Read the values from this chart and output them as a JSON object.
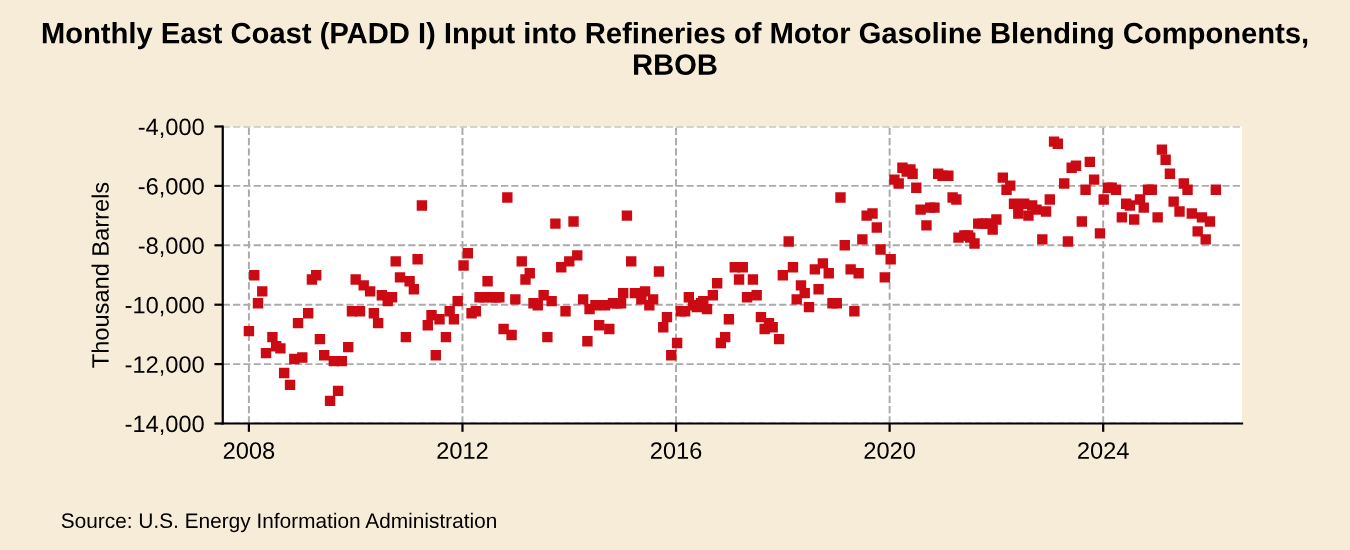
{
  "chart_data": {
    "type": "scatter",
    "title": "Monthly East Coast (PADD I) Input into Refineries of Motor Gasoline Blending Components, RBOB",
    "ylabel": "Thousand Barrels",
    "annotations": [
      "Source: U.S. Energy Information Administration"
    ],
    "x": [
      2008.0,
      2008.1,
      2008.17,
      2008.25,
      2008.32,
      2008.44,
      2008.51,
      2008.59,
      2008.66,
      2008.77,
      2008.85,
      2008.92,
      2009.0,
      2009.11,
      2009.18,
      2009.26,
      2009.33,
      2009.41,
      2009.52,
      2009.59,
      2009.67,
      2009.74,
      2009.86,
      2009.93,
      2010.0,
      2010.08,
      2010.15,
      2010.27,
      2010.34,
      2010.42,
      2010.49,
      2010.6,
      2010.68,
      2010.75,
      2010.83,
      2010.94,
      2011.01,
      2011.09,
      2011.16,
      2011.24,
      2011.35,
      2011.42,
      2011.5,
      2011.57,
      2011.69,
      2011.76,
      2011.84,
      2011.91,
      2012.02,
      2012.1,
      2012.17,
      2012.25,
      2012.32,
      2012.4,
      2012.47,
      2012.55,
      2012.62,
      2012.69,
      2012.77,
      2012.84,
      2012.92,
      2012.99,
      2013.11,
      2013.18,
      2013.26,
      2013.33,
      2013.41,
      2013.52,
      2013.59,
      2013.67,
      2013.74,
      2013.85,
      2013.93,
      2014.0,
      2014.08,
      2014.15,
      2014.26,
      2014.34,
      2014.38,
      2014.49,
      2014.56,
      2014.67,
      2014.75,
      2014.82,
      2014.9,
      2014.97,
      2015.01,
      2015.08,
      2015.16,
      2015.23,
      2015.35,
      2015.42,
      2015.5,
      2015.57,
      2015.68,
      2015.76,
      2015.83,
      2015.91,
      2016.02,
      2016.09,
      2016.17,
      2016.24,
      2016.32,
      2016.39,
      2016.47,
      2016.51,
      2016.58,
      2016.69,
      2016.77,
      2016.84,
      2016.92,
      2016.99,
      2017.1,
      2017.18,
      2017.25,
      2017.33,
      2017.44,
      2017.51,
      2017.59,
      2017.66,
      2017.74,
      2017.81,
      2017.93,
      2018.0,
      2018.11,
      2018.19,
      2018.26,
      2018.34,
      2018.41,
      2018.49,
      2018.6,
      2018.67,
      2018.75,
      2018.86,
      2018.93,
      2019.01,
      2019.08,
      2019.16,
      2019.27,
      2019.34,
      2019.42,
      2019.49,
      2019.57,
      2019.68,
      2019.76,
      2019.83,
      2019.91,
      2020.02,
      2020.09,
      2020.17,
      2020.24,
      2020.32,
      2020.39,
      2020.43,
      2020.5,
      2020.58,
      2020.69,
      2020.76,
      2020.84,
      2020.91,
      2020.99,
      2021.1,
      2021.18,
      2021.25,
      2021.29,
      2021.4,
      2021.47,
      2021.51,
      2021.59,
      2021.66,
      2021.74,
      2021.81,
      2021.89,
      2021.93,
      2022.0,
      2022.12,
      2022.19,
      2022.26,
      2022.33,
      2022.41,
      2022.52,
      2022.6,
      2022.67,
      2022.75,
      2022.86,
      2022.93,
      2023.0,
      2023.08,
      2023.15,
      2023.27,
      2023.34,
      2023.41,
      2023.49,
      2023.6,
      2023.67,
      2023.75,
      2023.83,
      2023.94,
      2024.01,
      2024.09,
      2024.16,
      2024.24,
      2024.35,
      2024.43,
      2024.5,
      2024.58,
      2024.69,
      2024.76,
      2024.84,
      2024.91,
      2025.02,
      2025.1,
      2025.17,
      2025.25,
      2025.32,
      2025.43,
      2025.51,
      2025.58,
      2025.66,
      2025.77,
      2025.85,
      2025.92,
      2026.0,
      2026.11
    ],
    "series": [
      {
        "color": "#cc0a14",
        "values": [
          -10890,
          -9010,
          -9950,
          -9550,
          -11630,
          -11090,
          -11400,
          -11470,
          -12300,
          -12700,
          -11830,
          -10620,
          -11780,
          -10290,
          -9150,
          -9010,
          -11160,
          -11700,
          -13240,
          -11900,
          -12900,
          -11900,
          -11430,
          -10220,
          -9150,
          -10220,
          -9350,
          -9550,
          -10290,
          -10620,
          -9680,
          -9880,
          -9750,
          -8540,
          -9080,
          -11090,
          -9210,
          -9480,
          -8470,
          -6660,
          -10690,
          -10350,
          -11700,
          -10490,
          -11090,
          -10220,
          -10490,
          -9880,
          -8680,
          -8270,
          -10290,
          -10220,
          -9750,
          -9750,
          -9210,
          -9750,
          -9750,
          -9750,
          -10820,
          -6390,
          -11020,
          -9820,
          -8540,
          -9150,
          -8940,
          -9950,
          -10020,
          -9680,
          -11090,
          -9880,
          -7270,
          -8740,
          -10220,
          -8540,
          -7200,
          -8340,
          -9820,
          -11230,
          -10150,
          -10020,
          -10690,
          -10020,
          -10820,
          -9950,
          -9950,
          -9950,
          -9610,
          -7000,
          -8540,
          -9610,
          -9820,
          -9550,
          -10020,
          -9820,
          -8880,
          -10760,
          -10420,
          -11700,
          -11290,
          -10220,
          -10220,
          -9750,
          -10020,
          -10080,
          -9950,
          -9880,
          -10150,
          -9680,
          -9280,
          -11290,
          -11090,
          -10490,
          -8740,
          -9150,
          -8740,
          -9750,
          -9150,
          -9680,
          -10420,
          -10820,
          -10620,
          -10760,
          -11160,
          -9010,
          -7870,
          -8740,
          -9820,
          -9350,
          -9610,
          -10080,
          -8810,
          -9480,
          -8610,
          -8940,
          -9950,
          -9950,
          -6390,
          -8000,
          -8810,
          -10220,
          -8940,
          -7800,
          -7000,
          -6930,
          -7400,
          -8140,
          -9080,
          -8470,
          -5790,
          -5920,
          -5390,
          -5520,
          -5450,
          -5590,
          -6060,
          -6800,
          -7330,
          -6730,
          -6730,
          -5590,
          -5660,
          -5660,
          -6390,
          -6460,
          -7740,
          -7670,
          -7670,
          -7740,
          -7940,
          -7270,
          -7270,
          -7270,
          -7270,
          -7470,
          -7130,
          -5720,
          -6130,
          -5990,
          -6600,
          -6930,
          -6600,
          -7000,
          -6660,
          -6800,
          -7800,
          -6860,
          -6460,
          -4510,
          -4580,
          -5920,
          -7870,
          -5390,
          -5320,
          -7200,
          -6130,
          -5190,
          -5790,
          -7600,
          -6460,
          -6060,
          -6060,
          -6130,
          -7060,
          -6600,
          -6660,
          -7130,
          -6460,
          -6730,
          -6130,
          -6130,
          -7060,
          -4780,
          -5120,
          -5590,
          -6530,
          -6860,
          -5920,
          -6130,
          -6930,
          -7530,
          -7060,
          -7800,
          -7200,
          -6130
        ]
      }
    ],
    "xlim": [
      2007.51,
      2026.6
    ],
    "xticks": [
      2008,
      2012,
      2016,
      2020,
      2024
    ],
    "ylim": [
      -14000,
      -4000
    ],
    "yticks": [
      {
        "value": -14000,
        "label": "-14,000"
      },
      {
        "value": -12000,
        "label": "-12,000"
      },
      {
        "value": -10000,
        "label": "-10,000"
      },
      {
        "value": -8000,
        "label": "-8,000"
      },
      {
        "value": -6000,
        "label": "-6,000"
      },
      {
        "value": -4000,
        "label": "-4,000"
      }
    ],
    "grid": true,
    "marker": "square",
    "legend": false
  }
}
